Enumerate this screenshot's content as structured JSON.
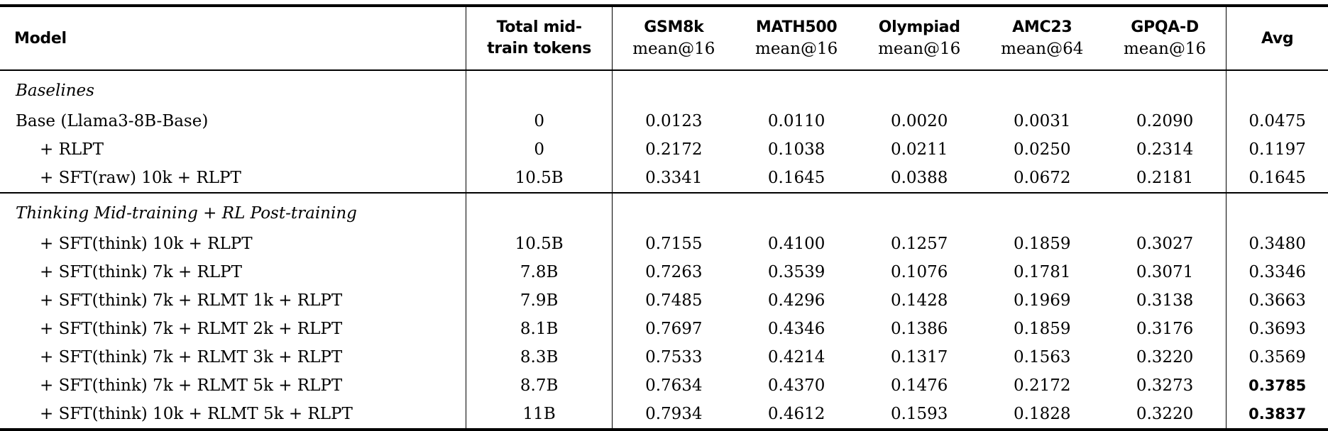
{
  "colors": {
    "text": "#000000",
    "background": "#ffffff",
    "rule": "#000000"
  },
  "table": {
    "header": {
      "model": "Model",
      "tokens_line1": "Total mid-",
      "tokens_line2": "train tokens",
      "benchmarks": [
        {
          "name": "GSM8k",
          "metric": "mean@16"
        },
        {
          "name": "MATH500",
          "metric": "mean@16"
        },
        {
          "name": "Olympiad",
          "metric": "mean@16"
        },
        {
          "name": "AMC23",
          "metric": "mean@64"
        },
        {
          "name": "GPQA-D",
          "metric": "mean@16"
        }
      ],
      "avg": "Avg"
    },
    "sections": [
      {
        "title": "Baselines",
        "rows": [
          {
            "model": "Base (Llama3-8B-Base)",
            "indent": false,
            "tokens": "0",
            "values": [
              "0.0123",
              "0.0110",
              "0.0020",
              "0.0031",
              "0.2090"
            ],
            "avg": "0.0475",
            "avg_bold": false
          },
          {
            "model": "+ RLPT",
            "indent": true,
            "tokens": "0",
            "values": [
              "0.2172",
              "0.1038",
              "0.0211",
              "0.0250",
              "0.2314"
            ],
            "avg": "0.1197",
            "avg_bold": false
          },
          {
            "model": "+ SFT(raw) 10k + RLPT",
            "indent": true,
            "tokens": "10.5B",
            "values": [
              "0.3341",
              "0.1645",
              "0.0388",
              "0.0672",
              "0.2181"
            ],
            "avg": "0.1645",
            "avg_bold": false
          }
        ]
      },
      {
        "title": "Thinking Mid-training + RL Post-training",
        "rows": [
          {
            "model": "+ SFT(think) 10k + RLPT",
            "indent": true,
            "tokens": "10.5B",
            "values": [
              "0.7155",
              "0.4100",
              "0.1257",
              "0.1859",
              "0.3027"
            ],
            "avg": "0.3480",
            "avg_bold": false
          },
          {
            "model": "+ SFT(think) 7k + RLPT",
            "indent": true,
            "tokens": "7.8B",
            "values": [
              "0.7263",
              "0.3539",
              "0.1076",
              "0.1781",
              "0.3071"
            ],
            "avg": "0.3346",
            "avg_bold": false
          },
          {
            "model": "+ SFT(think) 7k + RLMT 1k + RLPT",
            "indent": true,
            "tokens": "7.9B",
            "values": [
              "0.7485",
              "0.4296",
              "0.1428",
              "0.1969",
              "0.3138"
            ],
            "avg": "0.3663",
            "avg_bold": false
          },
          {
            "model": "+ SFT(think) 7k + RLMT 2k + RLPT",
            "indent": true,
            "tokens": "8.1B",
            "values": [
              "0.7697",
              "0.4346",
              "0.1386",
              "0.1859",
              "0.3176"
            ],
            "avg": "0.3693",
            "avg_bold": false
          },
          {
            "model": "+ SFT(think) 7k + RLMT 3k + RLPT",
            "indent": true,
            "tokens": "8.3B",
            "values": [
              "0.7533",
              "0.4214",
              "0.1317",
              "0.1563",
              "0.3220"
            ],
            "avg": "0.3569",
            "avg_bold": false
          },
          {
            "model": "+ SFT(think) 7k + RLMT 5k + RLPT",
            "indent": true,
            "tokens": "8.7B",
            "values": [
              "0.7634",
              "0.4370",
              "0.1476",
              "0.2172",
              "0.3273"
            ],
            "avg": "0.3785",
            "avg_bold": true
          },
          {
            "model": "+ SFT(think) 10k + RLMT 5k + RLPT",
            "indent": true,
            "tokens": "11B",
            "values": [
              "0.7934",
              "0.4612",
              "0.1593",
              "0.1828",
              "0.3220"
            ],
            "avg": "0.3837",
            "avg_bold": true
          }
        ]
      }
    ]
  }
}
